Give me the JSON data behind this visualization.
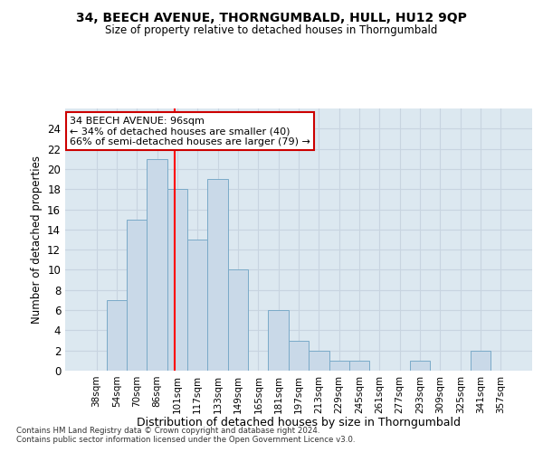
{
  "title1": "34, BEECH AVENUE, THORNGUMBALD, HULL, HU12 9QP",
  "title2": "Size of property relative to detached houses in Thorngumbald",
  "xlabel": "Distribution of detached houses by size in Thorngumbald",
  "ylabel": "Number of detached properties",
  "footer1": "Contains HM Land Registry data © Crown copyright and database right 2024.",
  "footer2": "Contains public sector information licensed under the Open Government Licence v3.0.",
  "bar_labels": [
    "38sqm",
    "54sqm",
    "70sqm",
    "86sqm",
    "101sqm",
    "117sqm",
    "133sqm",
    "149sqm",
    "165sqm",
    "181sqm",
    "197sqm",
    "213sqm",
    "229sqm",
    "245sqm",
    "261sqm",
    "277sqm",
    "293sqm",
    "309sqm",
    "325sqm",
    "341sqm",
    "357sqm"
  ],
  "bar_values": [
    0,
    7,
    15,
    21,
    18,
    13,
    19,
    10,
    0,
    6,
    3,
    2,
    1,
    1,
    0,
    0,
    1,
    0,
    0,
    2,
    0
  ],
  "bar_color": "#c9d9e8",
  "bar_edge_color": "#7aaac8",
  "ylim": [
    0,
    26
  ],
  "yticks": [
    0,
    2,
    4,
    6,
    8,
    10,
    12,
    14,
    16,
    18,
    20,
    22,
    24
  ],
  "red_line_x": 3.87,
  "annotation_line1": "34 BEECH AVENUE: 96sqm",
  "annotation_line2": "← 34% of detached houses are smaller (40)",
  "annotation_line3": "66% of semi-detached houses are larger (79) →",
  "annotation_box_color": "#ffffff",
  "annotation_box_edge": "#cc0000",
  "grid_color": "#c8d4e0",
  "background_color": "#dce8f0"
}
